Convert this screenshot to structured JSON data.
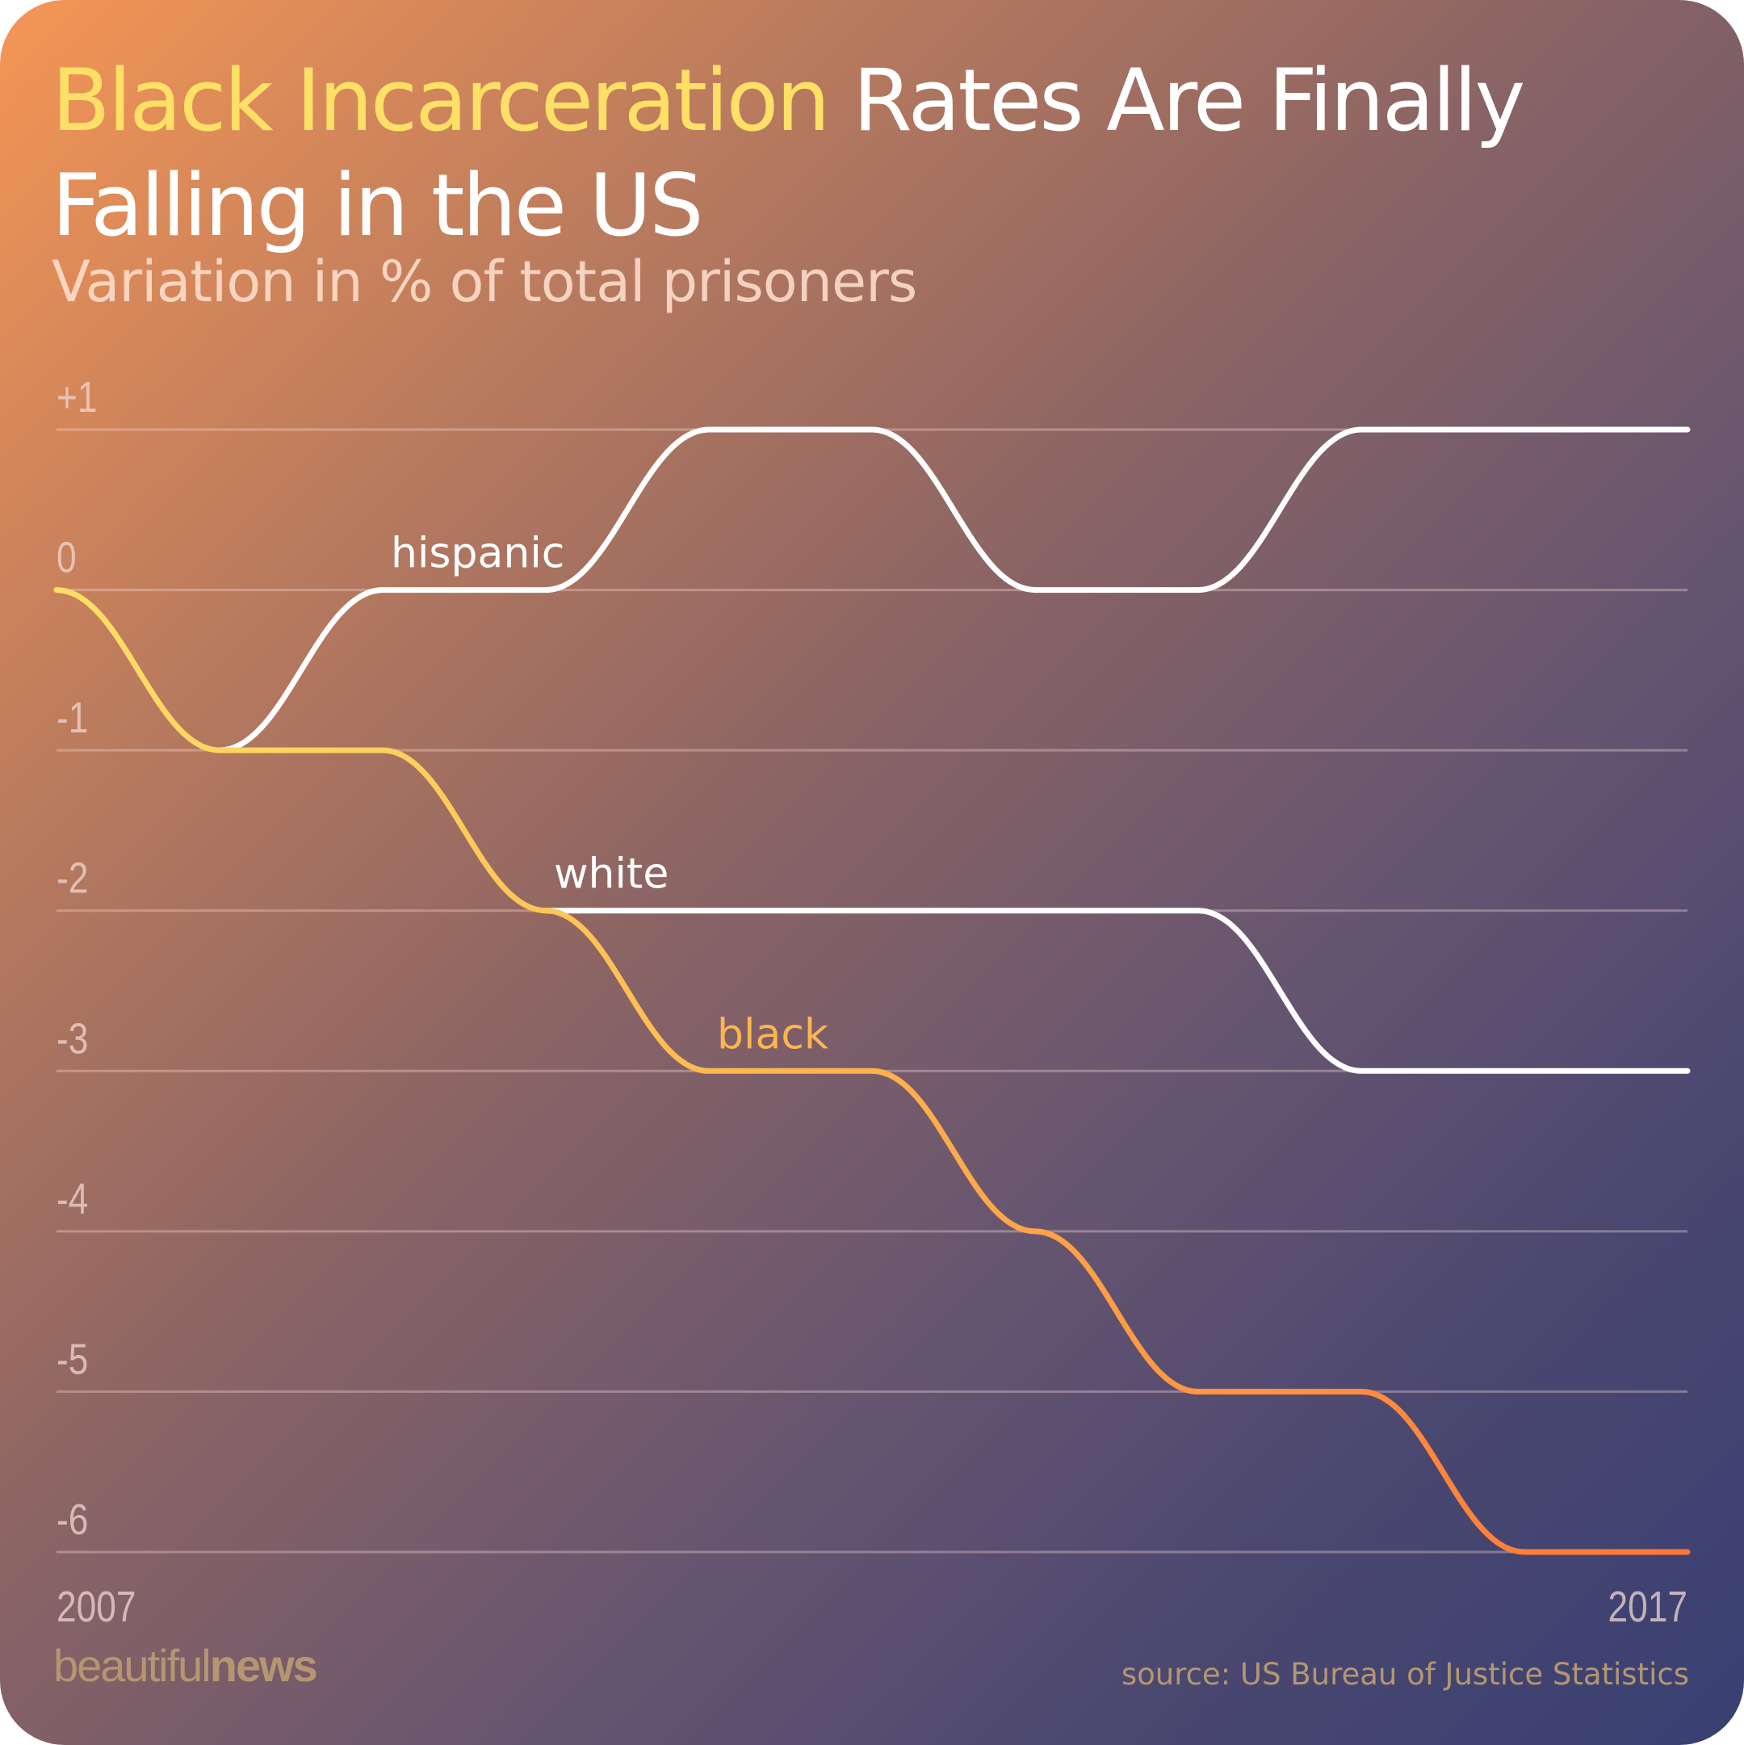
{
  "header": {
    "title_highlight": "Black Incarceration",
    "title_rest": " Rates Are Finally Falling in the US",
    "subtitle": "Variation in % of total prisoners"
  },
  "footer": {
    "brand_light": "beautiful",
    "brand_bold": "news",
    "source": "source: US Bureau of Justice Statistics"
  },
  "colors": {
    "highlight": "#fee067",
    "white_series": "#ffffff",
    "black_series_start": "#fee067",
    "black_series_end": "#ff7a35",
    "gridline": "rgba(255,220,215,0.35)"
  },
  "chart_data": {
    "type": "line",
    "title": "Black Incarceration Rates Are Finally Falling in the US",
    "subtitle": "Variation in % of total prisoners",
    "x": [
      2007,
      2008,
      2009,
      2010,
      2011,
      2012,
      2013,
      2014,
      2015,
      2016,
      2017
    ],
    "x_tick_labels": [
      "2007",
      "2017"
    ],
    "ylim": [
      -6,
      1
    ],
    "y_ticks": [
      1,
      0,
      -1,
      -2,
      -3,
      -4,
      -5,
      -6
    ],
    "y_tick_labels": [
      "+1",
      "0",
      "-1",
      "-2",
      "-3",
      "-4",
      "-5",
      "-6"
    ],
    "grid": true,
    "series": [
      {
        "name": "hispanic",
        "color": "#ffffff",
        "x": [
          2008,
          2009,
          2010,
          2011,
          2012,
          2013,
          2014,
          2015,
          2016,
          2017
        ],
        "values": [
          -1,
          0,
          0,
          1,
          1,
          0,
          0,
          1,
          1,
          1
        ]
      },
      {
        "name": "white",
        "color": "#ffffff",
        "x": [
          2010,
          2011,
          2012,
          2013,
          2014,
          2015,
          2016,
          2017
        ],
        "values": [
          -2,
          -2,
          -2,
          -2,
          -2,
          -3,
          -3,
          -3
        ]
      },
      {
        "name": "black",
        "color": "#fdb64f",
        "x": [
          2007,
          2008,
          2009,
          2010,
          2011,
          2012,
          2013,
          2014,
          2015,
          2016,
          2017
        ],
        "values": [
          0,
          -1,
          -1,
          -2,
          -3,
          -3,
          -4,
          -5,
          -5,
          -6,
          -6
        ]
      }
    ]
  }
}
